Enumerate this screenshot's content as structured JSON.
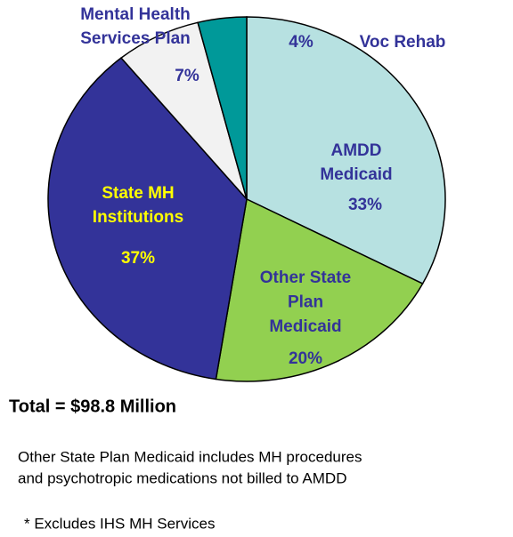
{
  "chart_data": {
    "type": "pie",
    "categories": [
      [
        "AMDD",
        "Medicaid"
      ],
      [
        "Other State",
        "Plan",
        "Medicaid"
      ],
      [
        "State MH",
        "Institutions"
      ],
      [
        "Mental Health",
        "Services Plan"
      ],
      [
        "Voc Rehab"
      ]
    ],
    "values": [
      33,
      20,
      37,
      7,
      4
    ],
    "value_labels": [
      "33%",
      "20%",
      "37%",
      "7%",
      "4%"
    ],
    "colors": [
      "#b7e1e1",
      "#92d050",
      "#333399",
      "#f2f2f2",
      "#009999"
    ],
    "label_colors": [
      "#333399",
      "#333399",
      "#ffff00",
      "#333399",
      "#333399"
    ],
    "total": "Total = $98.8 Million",
    "notes": [
      "Other State Plan Medicaid includes MH procedures",
      "and psychotropic medications not billed to AMDD",
      "* Excludes IHS MH Services"
    ]
  }
}
